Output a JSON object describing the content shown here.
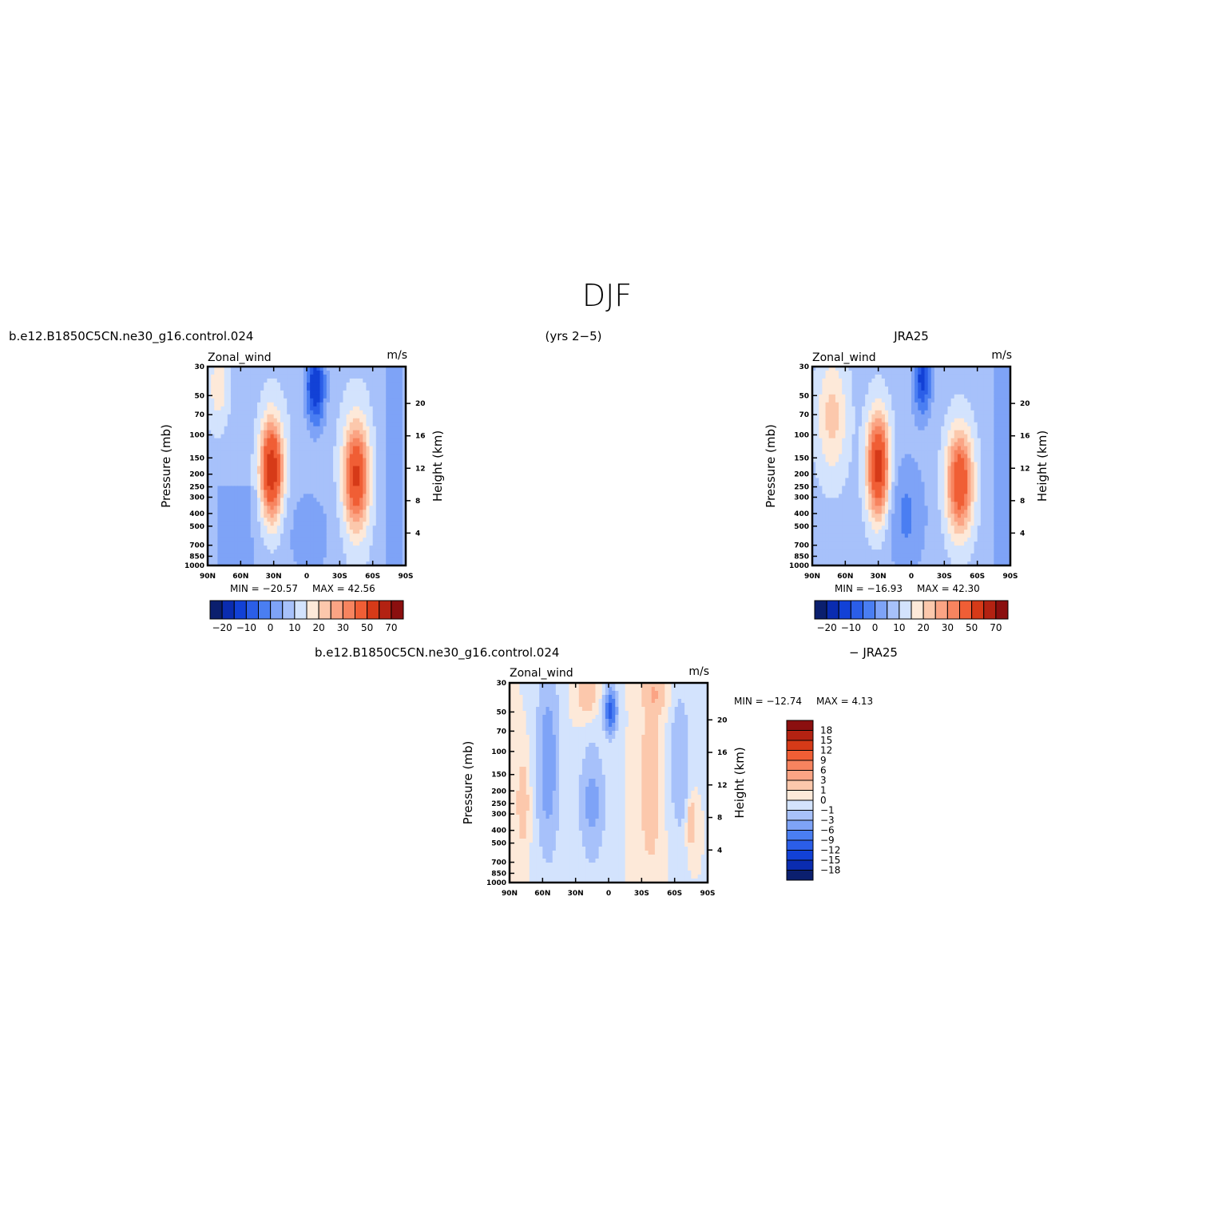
{
  "figure": {
    "title": "DJF",
    "model_case": "b.e12.B1850C5CN.ne30_g16.control.024",
    "years": "(yrs 2−5)",
    "obs_case": "JRA25",
    "diff_case_left": "b.e12.B1850C5CN.ne30_g16.control.024",
    "diff_case_right": "− JRA25"
  },
  "colors": {
    "level_palette": [
      "#0b1f6e",
      "#0a2cb0",
      "#1241d6",
      "#2b5ee8",
      "#4a7ef2",
      "#7ea3f7",
      "#a7c1fa",
      "#d3e3fd",
      "#fde9d9",
      "#fcc8ac",
      "#fba484",
      "#f7845f",
      "#f05e35",
      "#d63a18",
      "#b32212",
      "#8b0f0f"
    ]
  },
  "chart_data": [
    {
      "type": "contour",
      "panel": "model",
      "variable": "Zonal_wind",
      "units": "m/s",
      "ylabel": "Pressure (mb)",
      "ylabel_right": "Height (km)",
      "x_ticks": [
        "90N",
        "60N",
        "30N",
        "0",
        "30S",
        "60S",
        "90S"
      ],
      "y_ticks": [
        "30",
        "50",
        "70",
        "100",
        "150",
        "200",
        "250",
        "300",
        "400",
        "500",
        "700",
        "850",
        "1000"
      ],
      "y_ticks_right": [
        "4",
        "8",
        "12",
        "16",
        "20"
      ],
      "min_label": "MIN = −20.57",
      "max_label": "MAX =  42.56",
      "min": -20.57,
      "max": 42.56,
      "colorbar_labels": [
        "−20",
        "−10",
        "0",
        "10",
        "20",
        "30",
        "50",
        "70"
      ]
    },
    {
      "type": "contour",
      "panel": "obs",
      "variable": "Zonal_wind",
      "units": "m/s",
      "ylabel": "Pressure (mb)",
      "ylabel_right": "Height (km)",
      "x_ticks": [
        "90N",
        "60N",
        "30N",
        "0",
        "30S",
        "60S",
        "90S"
      ],
      "y_ticks": [
        "30",
        "50",
        "70",
        "100",
        "150",
        "200",
        "250",
        "300",
        "400",
        "500",
        "700",
        "850",
        "1000"
      ],
      "y_ticks_right": [
        "4",
        "8",
        "12",
        "16",
        "20"
      ],
      "min_label": "MIN = −16.93",
      "max_label": "MAX =  42.30",
      "min": -16.93,
      "max": 42.3,
      "colorbar_labels": [
        "−20",
        "−10",
        "0",
        "10",
        "20",
        "30",
        "50",
        "70"
      ]
    },
    {
      "type": "contour",
      "panel": "difference",
      "variable": "Zonal_wind",
      "units": "m/s",
      "ylabel": "Pressure (mb)",
      "ylabel_right": "Height (km)",
      "x_ticks": [
        "90N",
        "60N",
        "30N",
        "0",
        "30S",
        "60S",
        "90S"
      ],
      "y_ticks": [
        "30",
        "50",
        "70",
        "100",
        "150",
        "200",
        "250",
        "300",
        "400",
        "500",
        "700",
        "850",
        "1000"
      ],
      "y_ticks_right": [
        "4",
        "8",
        "12",
        "16",
        "20"
      ],
      "min_label": "MIN = −12.74",
      "max_label": "MAX =    4.13",
      "min": -12.74,
      "max": 4.13,
      "colorbar_labels": [
        "18",
        "15",
        "12",
        "9",
        "6",
        "3",
        "1",
        "0",
        "−1",
        "−3",
        "−6",
        "−9",
        "−12",
        "−15",
        "−18"
      ]
    }
  ]
}
